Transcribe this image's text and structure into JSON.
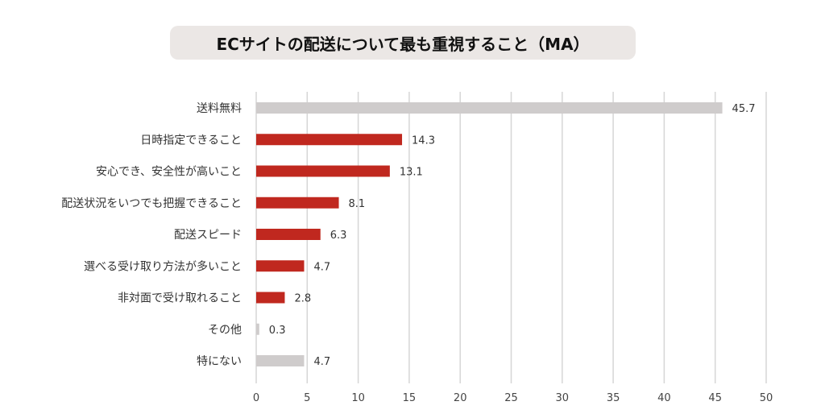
{
  "chart_data": {
    "type": "bar",
    "orientation": "horizontal",
    "title": "ECサイトの配送について最も重視すること（MA）",
    "categories": [
      "送料無料",
      "日時指定できること",
      "安心でき、安全性が高いこと",
      "配送状況をいつでも把握できること",
      "配送スピード",
      "選べる受け取り方法が多いこと",
      "非対面で受け取れること",
      "その他",
      "特にない"
    ],
    "values": [
      45.7,
      14.3,
      13.1,
      8.1,
      6.3,
      4.7,
      2.8,
      0.3,
      4.7
    ],
    "value_labels": [
      "45.7",
      "14.3",
      "13.1",
      "8.1",
      "6.3",
      "4.7",
      "2.8",
      "0.3",
      "4.7"
    ],
    "highlight": [
      false,
      true,
      true,
      true,
      true,
      true,
      true,
      false,
      false
    ],
    "x_ticks": [
      0,
      5,
      10,
      15,
      20,
      25,
      30,
      35,
      40,
      45,
      50
    ],
    "xlim": [
      0,
      50
    ],
    "grid": true,
    "xlabel": "",
    "ylabel": "",
    "colors": {
      "highlight": "#c0281f",
      "muted": "#cfcccc",
      "grid": "#d6d6d6"
    }
  }
}
